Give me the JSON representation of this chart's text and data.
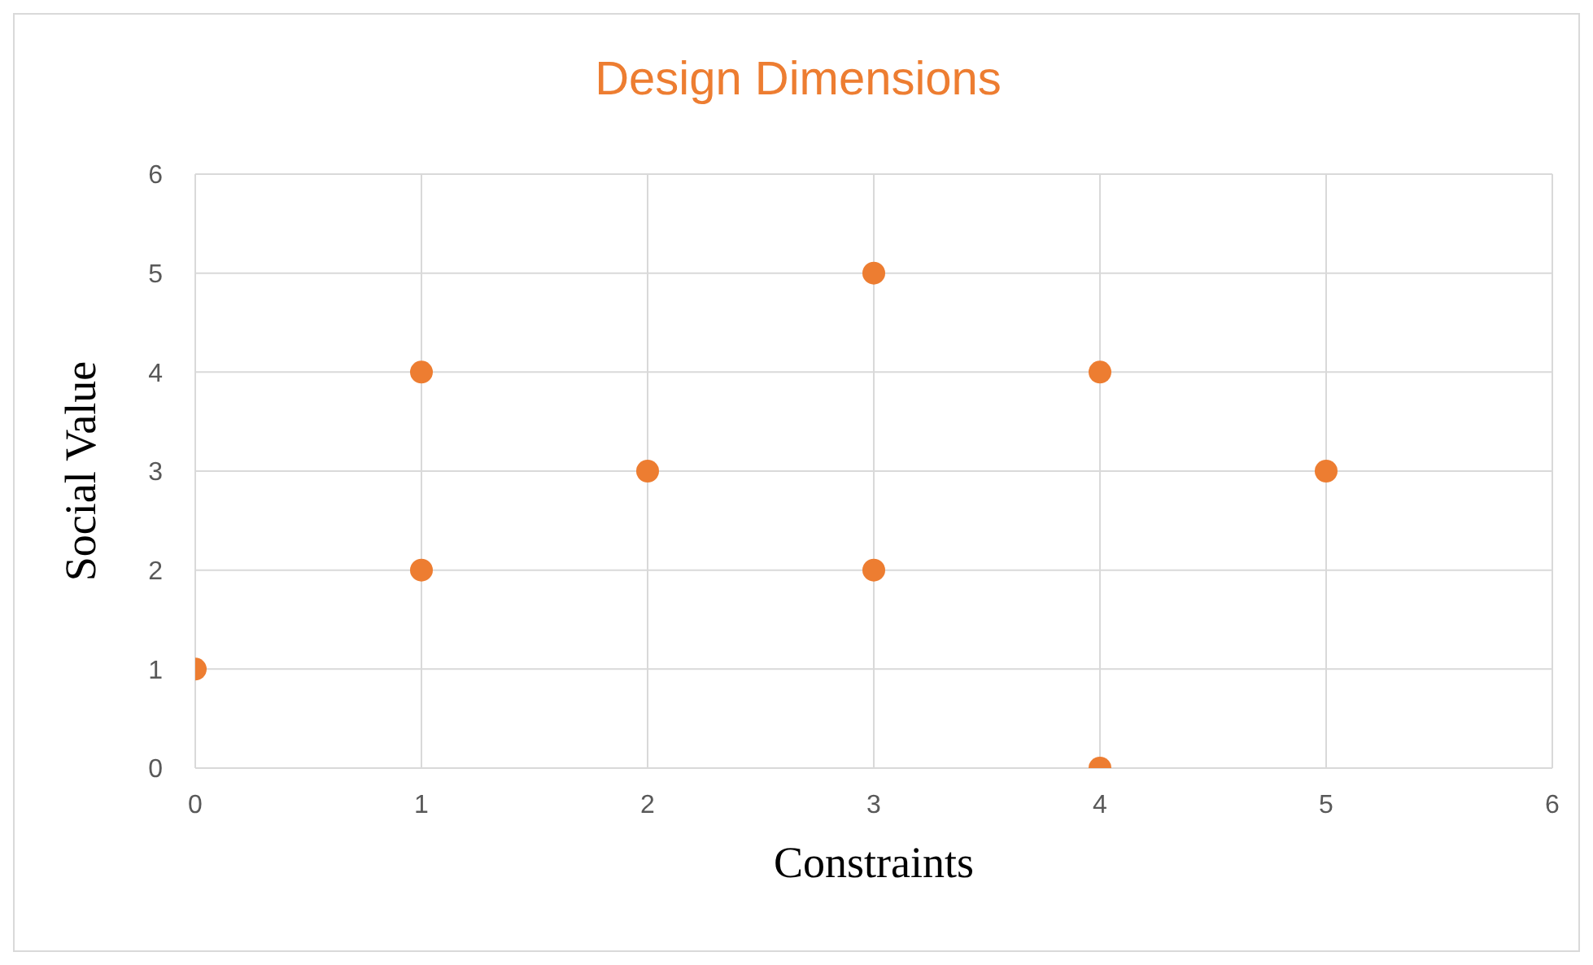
{
  "chart_data": {
    "type": "scatter",
    "title": "Design Dimensions",
    "xlabel": "Constraints",
    "ylabel": "Social Value",
    "x": [
      0,
      1,
      1,
      2,
      3,
      3,
      4,
      4,
      5
    ],
    "values": [
      1,
      4,
      2,
      3,
      5,
      2,
      4,
      0,
      3
    ],
    "color": "#ed7d31",
    "marker": "circle",
    "xlim": [
      0,
      6
    ],
    "xticks": [
      0,
      1,
      2,
      3,
      4,
      5,
      6
    ],
    "ylim": [
      0,
      6
    ],
    "yticks": [
      0,
      1,
      2,
      3,
      4,
      5,
      6
    ],
    "grid": true
  }
}
